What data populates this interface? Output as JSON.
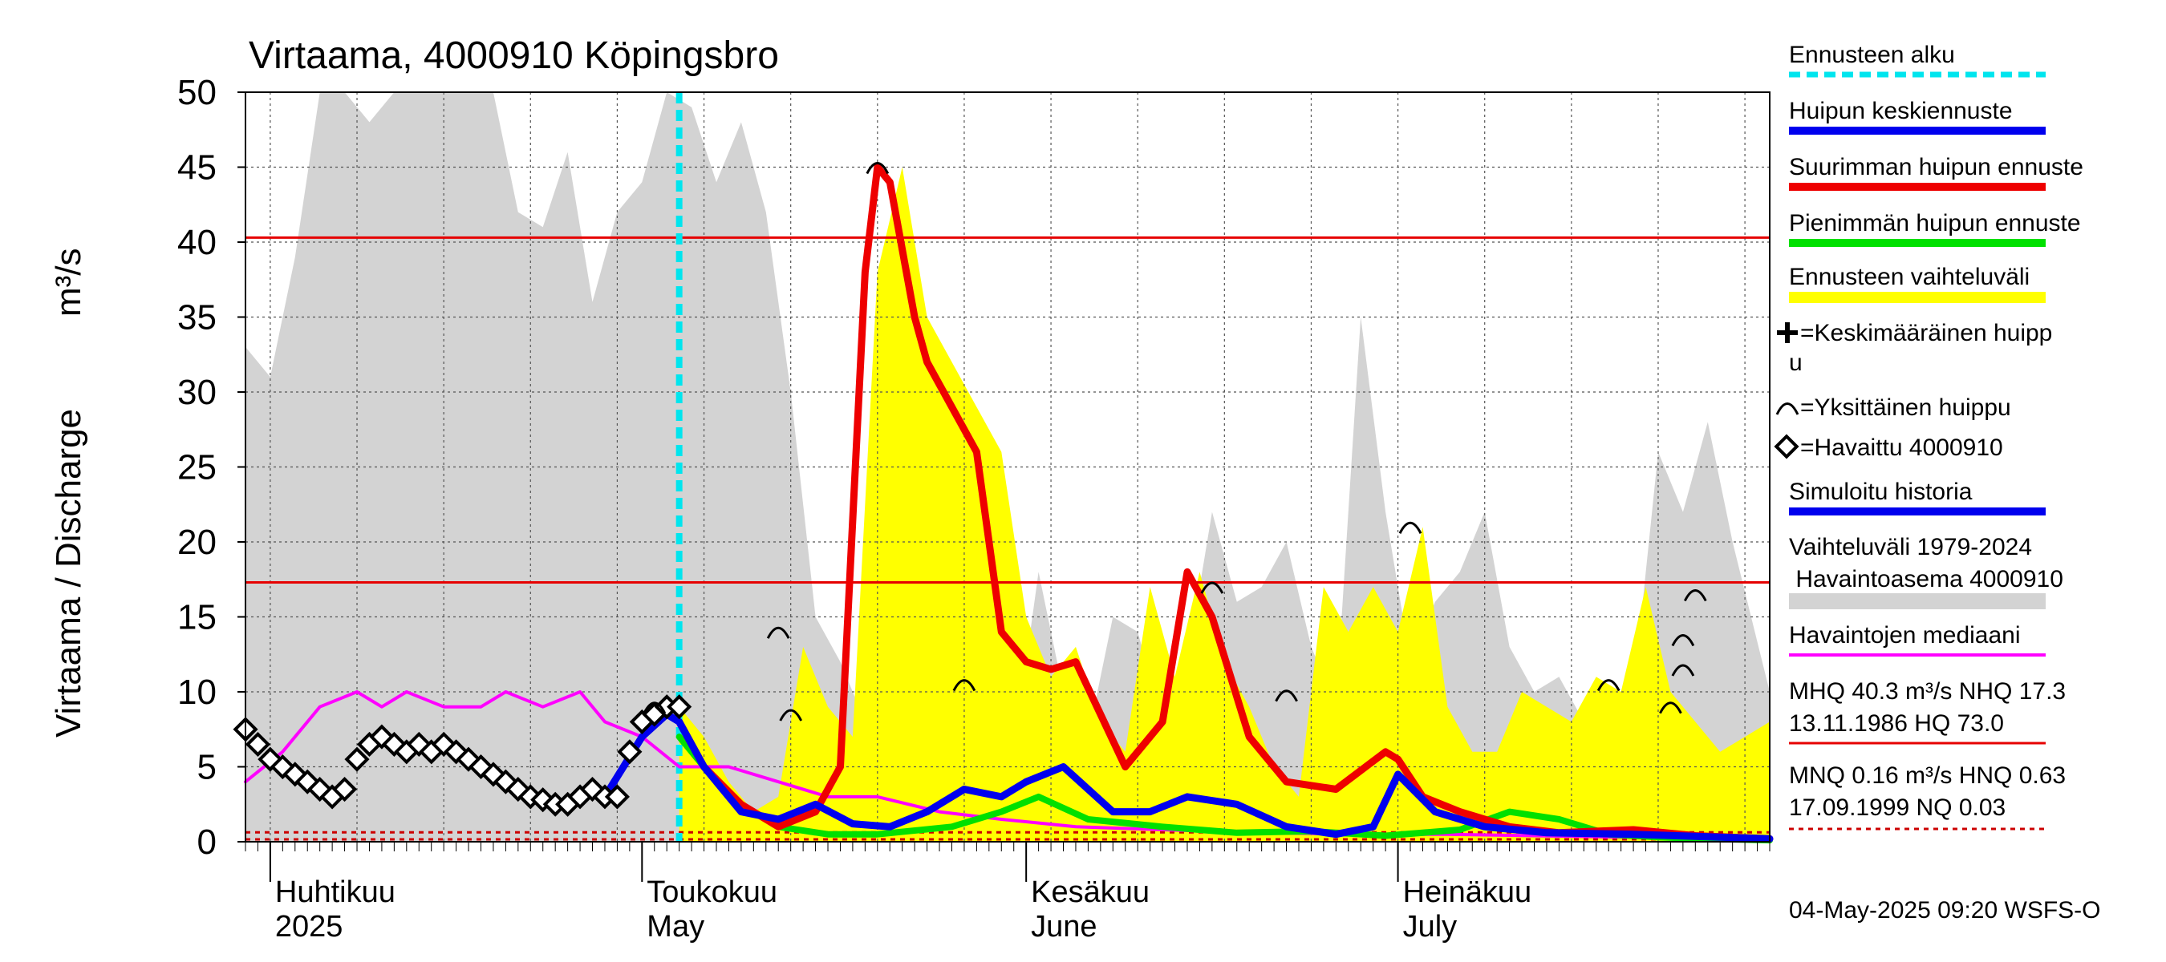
{
  "chart_data": {
    "type": "area",
    "title": "Virtaama, 4000910 Köpingsbro",
    "ylabel": "Virtaama / Discharge",
    "yunit": "m³/s",
    "ylim": [
      0,
      50
    ],
    "yticks": [
      "0",
      "5",
      "10",
      "15",
      "20",
      "25",
      "30",
      "35",
      "40",
      "45",
      "50"
    ],
    "xlim": [
      "2025-03-30",
      "2025-07-31"
    ],
    "grid": true,
    "legend_position": "right",
    "months": [
      {
        "fi": "Huhtikuu",
        "en": "2025",
        "date": "2025-04-01"
      },
      {
        "fi": "Toukokuu",
        "en": "May",
        "date": "2025-05-01"
      },
      {
        "fi": "Kesäkuu",
        "en": "June",
        "date": "2025-06-01"
      },
      {
        "fi": "Heinäkuu",
        "en": "July",
        "date": "2025-07-01"
      }
    ],
    "forecast_start": "2025-05-04",
    "reference_lines": [
      {
        "name": "MHQ",
        "value": 40.3,
        "color": "#e60000",
        "style": "solid"
      },
      {
        "name": "NHQ",
        "value": 17.3,
        "color": "#e60000",
        "style": "solid"
      },
      {
        "name": "MNQ",
        "value": 0.16,
        "color": "#cc0000",
        "style": "dotted"
      },
      {
        "name": "HNQ",
        "value": 0.63,
        "color": "#cc0000",
        "style": "dotted"
      }
    ],
    "series": [
      {
        "name": "Vaihteluväli 1979-2024 Havaintoasema 4000910",
        "kind": "band",
        "color": "#d3d3d3",
        "x": [
          "2025-03-30",
          "2025-04-01",
          "2025-04-03",
          "2025-04-05",
          "2025-04-07",
          "2025-04-09",
          "2025-04-11",
          "2025-04-13",
          "2025-04-15",
          "2025-04-17",
          "2025-04-19",
          "2025-04-21",
          "2025-04-23",
          "2025-04-25",
          "2025-04-27",
          "2025-04-29",
          "2025-05-01",
          "2025-05-03",
          "2025-05-05",
          "2025-05-07",
          "2025-05-09",
          "2025-05-11",
          "2025-05-13",
          "2025-05-15",
          "2025-05-17",
          "2025-05-19",
          "2025-05-21",
          "2025-05-23",
          "2025-05-25",
          "2025-05-27",
          "2025-05-29",
          "2025-05-31",
          "2025-06-02",
          "2025-06-04",
          "2025-06-06",
          "2025-06-08",
          "2025-06-10",
          "2025-06-12",
          "2025-06-14",
          "2025-06-16",
          "2025-06-18",
          "2025-06-20",
          "2025-06-22",
          "2025-06-24",
          "2025-06-26",
          "2025-06-28",
          "2025-06-30",
          "2025-07-02",
          "2025-07-04",
          "2025-07-06",
          "2025-07-08",
          "2025-07-10",
          "2025-07-12",
          "2025-07-14",
          "2025-07-16",
          "2025-07-18",
          "2025-07-20",
          "2025-07-22",
          "2025-07-24",
          "2025-07-26",
          "2025-07-28",
          "2025-07-31"
        ],
        "upper": [
          33,
          31,
          39,
          50,
          50,
          48,
          50,
          50,
          50,
          50,
          50,
          42,
          41,
          46,
          36,
          42,
          44,
          50,
          49,
          44,
          48,
          42,
          30,
          15,
          12,
          8,
          4,
          6,
          9,
          11,
          8,
          6,
          18,
          10,
          7,
          15,
          14,
          8,
          12,
          22,
          16,
          17,
          20,
          13,
          9,
          35,
          22,
          12,
          16,
          18,
          22,
          13,
          10,
          11,
          8,
          8,
          10,
          26,
          22,
          28,
          20,
          10
        ],
        "lower": [
          0,
          0,
          0,
          0,
          0,
          0,
          0,
          0,
          0,
          0,
          0,
          0,
          0,
          0,
          0,
          0,
          0,
          0,
          0,
          0,
          0,
          0,
          0,
          0,
          0,
          0,
          0,
          0,
          0,
          0,
          0,
          0,
          0,
          0,
          0,
          0,
          0,
          0,
          0,
          0,
          0,
          0,
          0,
          0,
          0,
          0,
          0,
          0,
          0,
          0,
          0,
          0,
          0,
          0,
          0,
          0,
          0,
          0,
          0,
          0,
          0,
          0
        ]
      },
      {
        "name": "Ennusteen vaihteluväli",
        "kind": "band",
        "color": "#ffff00",
        "x": [
          "2025-05-04",
          "2025-05-06",
          "2025-05-08",
          "2025-05-10",
          "2025-05-12",
          "2025-05-14",
          "2025-05-16",
          "2025-05-18",
          "2025-05-20",
          "2025-05-22",
          "2025-05-24",
          "2025-05-26",
          "2025-05-28",
          "2025-05-30",
          "2025-06-01",
          "2025-06-03",
          "2025-06-05",
          "2025-06-07",
          "2025-06-09",
          "2025-06-11",
          "2025-06-13",
          "2025-06-15",
          "2025-06-17",
          "2025-06-19",
          "2025-06-21",
          "2025-06-23",
          "2025-06-25",
          "2025-06-27",
          "2025-06-29",
          "2025-07-01",
          "2025-07-03",
          "2025-07-05",
          "2025-07-07",
          "2025-07-09",
          "2025-07-11",
          "2025-07-13",
          "2025-07-15",
          "2025-07-17",
          "2025-07-19",
          "2025-07-21",
          "2025-07-23",
          "2025-07-25",
          "2025-07-27",
          "2025-07-29",
          "2025-07-31"
        ],
        "upper": [
          9,
          7,
          4,
          2,
          3,
          13,
          9,
          7,
          38,
          45,
          35,
          32,
          29,
          26,
          15,
          11,
          13,
          8,
          6,
          17,
          11,
          18,
          12,
          9,
          5,
          3,
          17,
          14,
          17,
          14,
          21,
          9,
          6,
          6,
          10,
          9,
          8,
          11,
          10,
          17,
          10,
          8,
          6,
          7,
          8
        ],
        "lower": [
          0,
          0,
          0,
          0,
          0,
          0,
          0,
          0,
          0,
          0,
          0,
          0,
          0,
          0,
          0,
          0,
          0,
          0,
          0,
          0,
          0,
          0,
          0,
          0,
          0,
          0,
          0,
          0,
          0,
          0,
          0,
          0,
          0,
          0,
          0,
          0,
          0,
          0,
          0,
          0,
          0,
          0,
          0,
          0,
          0
        ]
      },
      {
        "name": "Havaintojen mediaani",
        "kind": "line",
        "color": "#ff00ff",
        "x": [
          "2025-03-30",
          "2025-04-02",
          "2025-04-05",
          "2025-04-08",
          "2025-04-10",
          "2025-04-12",
          "2025-04-15",
          "2025-04-18",
          "2025-04-20",
          "2025-04-23",
          "2025-04-26",
          "2025-04-28",
          "2025-05-01",
          "2025-05-04",
          "2025-05-08",
          "2025-05-12",
          "2025-05-16",
          "2025-05-20",
          "2025-05-25",
          "2025-05-30",
          "2025-06-05",
          "2025-06-12",
          "2025-06-20",
          "2025-06-28",
          "2025-07-05",
          "2025-07-12",
          "2025-07-20",
          "2025-07-31"
        ],
        "y": [
          4,
          6,
          9,
          10,
          9,
          10,
          9,
          9,
          10,
          9,
          10,
          8,
          7,
          5,
          5,
          4,
          3,
          3,
          2,
          1.5,
          1,
          0.8,
          0.6,
          0.5,
          0.5,
          0.4,
          0.3,
          0.3
        ]
      },
      {
        "name": "Pienimmän huipun ennuste",
        "kind": "line",
        "color": "#00e000",
        "x": [
          "2025-05-04",
          "2025-05-08",
          "2025-05-12",
          "2025-05-16",
          "2025-05-20",
          "2025-05-26",
          "2025-05-30",
          "2025-06-02",
          "2025-06-06",
          "2025-06-12",
          "2025-06-18",
          "2025-06-24",
          "2025-06-30",
          "2025-07-06",
          "2025-07-10",
          "2025-07-14",
          "2025-07-18",
          "2025-07-22",
          "2025-07-26",
          "2025-07-31"
        ],
        "y": [
          7,
          3,
          1,
          0.5,
          0.5,
          1,
          2,
          3,
          1.5,
          1,
          0.6,
          0.7,
          0.4,
          0.8,
          2,
          1.5,
          0.5,
          0.3,
          0.2,
          0.1
        ]
      },
      {
        "name": "Suurimman huipun ennuste",
        "kind": "line",
        "color": "#ee0000",
        "x": [
          "2025-05-04",
          "2025-05-06",
          "2025-05-09",
          "2025-05-12",
          "2025-05-15",
          "2025-05-17",
          "2025-05-19",
          "2025-05-20",
          "2025-05-21",
          "2025-05-23",
          "2025-05-24",
          "2025-05-26",
          "2025-05-28",
          "2025-05-30",
          "2025-06-01",
          "2025-06-03",
          "2025-06-05",
          "2025-06-09",
          "2025-06-12",
          "2025-06-14",
          "2025-06-16",
          "2025-06-19",
          "2025-06-22",
          "2025-06-26",
          "2025-06-30",
          "2025-07-01",
          "2025-07-03",
          "2025-07-06",
          "2025-07-10",
          "2025-07-14",
          "2025-07-20",
          "2025-07-25",
          "2025-07-31"
        ],
        "y": [
          8,
          5,
          2.5,
          1,
          2,
          5,
          38,
          45,
          44,
          35,
          32,
          29,
          26,
          14,
          12,
          11.5,
          12,
          5,
          8,
          18,
          15,
          7,
          4,
          3.5,
          6,
          5.5,
          3,
          2,
          1,
          0.6,
          0.8,
          0.4,
          0.2
        ]
      },
      {
        "name": "Huipun keskiennuste",
        "kind": "line",
        "color": "#0000ee",
        "x": [
          "2025-04-28",
          "2025-05-01",
          "2025-05-03",
          "2025-05-04",
          "2025-05-06",
          "2025-05-09",
          "2025-05-12",
          "2025-05-15",
          "2025-05-18",
          "2025-05-21",
          "2025-05-24",
          "2025-05-27",
          "2025-05-30",
          "2025-06-01",
          "2025-06-04",
          "2025-06-08",
          "2025-06-11",
          "2025-06-14",
          "2025-06-18",
          "2025-06-22",
          "2025-06-26",
          "2025-06-29",
          "2025-07-01",
          "2025-07-04",
          "2025-07-08",
          "2025-07-13",
          "2025-07-20",
          "2025-07-31"
        ],
        "y": [
          3,
          7,
          8.5,
          8,
          5,
          2,
          1.5,
          2.5,
          1.2,
          1,
          2,
          3.5,
          3,
          4,
          5,
          2,
          2,
          3,
          2.5,
          1,
          0.5,
          1,
          4.5,
          2,
          1,
          0.6,
          0.5,
          0.2
        ]
      },
      {
        "name": "Havaittu 4000910",
        "kind": "markers",
        "color": "#000000",
        "x": [
          "2025-03-30",
          "2025-03-31",
          "2025-04-01",
          "2025-04-02",
          "2025-04-03",
          "2025-04-04",
          "2025-04-05",
          "2025-04-06",
          "2025-04-07",
          "2025-04-08",
          "2025-04-09",
          "2025-04-10",
          "2025-04-11",
          "2025-04-12",
          "2025-04-13",
          "2025-04-14",
          "2025-04-15",
          "2025-04-16",
          "2025-04-17",
          "2025-04-18",
          "2025-04-19",
          "2025-04-20",
          "2025-04-21",
          "2025-04-22",
          "2025-04-23",
          "2025-04-24",
          "2025-04-25",
          "2025-04-26",
          "2025-04-27",
          "2025-04-28",
          "2025-04-29",
          "2025-04-30",
          "2025-05-01",
          "2025-05-02",
          "2025-05-03",
          "2025-05-04"
        ],
        "y": [
          7.5,
          6.5,
          5.5,
          5,
          4.5,
          4,
          3.5,
          3,
          3.5,
          5.5,
          6.5,
          7,
          6.5,
          6,
          6.5,
          6,
          6.5,
          6,
          5.5,
          5,
          4.5,
          4,
          3.5,
          3,
          2.8,
          2.5,
          2.5,
          3,
          3.5,
          3,
          3,
          6,
          8,
          8.5,
          9,
          9
        ]
      }
    ],
    "peaks": [
      {
        "date": "2025-05-02",
        "value": 9
      },
      {
        "date": "2025-05-12",
        "value": 14
      },
      {
        "date": "2025-05-13",
        "value": 8.5
      },
      {
        "date": "2025-05-20",
        "value": 45
      },
      {
        "date": "2025-05-27",
        "value": 10.5
      },
      {
        "date": "2025-06-16",
        "value": 17
      },
      {
        "date": "2025-06-22",
        "value": 9.8
      },
      {
        "date": "2025-07-02",
        "value": 21
      },
      {
        "date": "2025-07-18",
        "value": 10.5
      },
      {
        "date": "2025-07-23",
        "value": 9
      },
      {
        "date": "2025-07-24",
        "value": 11.5
      },
      {
        "date": "2025-07-24",
        "value": 13.5
      },
      {
        "date": "2025-07-25",
        "value": 16.5
      }
    ]
  },
  "legend": {
    "items": [
      {
        "label": "Ennusteen alku",
        "color": "#00e5ee",
        "style": "dotted"
      },
      {
        "label": "Huipun keskiennuste",
        "color": "#0000ee",
        "style": "solid"
      },
      {
        "label": "Suurimman huipun ennuste",
        "color": "#ee0000",
        "style": "solid"
      },
      {
        "label": "Pienimmän huipun ennuste",
        "color": "#00e000",
        "style": "solid"
      },
      {
        "label": "Ennusteen vaihteluväli",
        "color": "#ffff00",
        "style": "band"
      }
    ],
    "symbol_mean_peak_1": "=Keskimääräinen huipp",
    "symbol_mean_peak_2": "u",
    "symbol_single_peak": "=Yksittäinen huippu",
    "symbol_observed": "=Havaittu 4000910",
    "simulated": {
      "label": "Simuloitu historia",
      "color": "#0000ee"
    },
    "range_hist_1": "Vaihteluväli 1979-2024",
    "range_hist_2": " Havaintoasema 4000910",
    "range_hist_color": "#d3d3d3",
    "median": {
      "label": "Havaintojen mediaani",
      "color": "#ff00ff"
    },
    "hq_1": "MHQ 40.3 m³/s NHQ 17.3",
    "hq_2": "13.11.1986 HQ 73.0",
    "hq_color": "#e60000",
    "nq_1": "MNQ 0.16 m³/s HNQ 0.63",
    "nq_2": "17.09.1999 NQ 0.03",
    "nq_color": "#cc0000"
  },
  "timestamp": "04-May-2025 09:20 WSFS-O"
}
